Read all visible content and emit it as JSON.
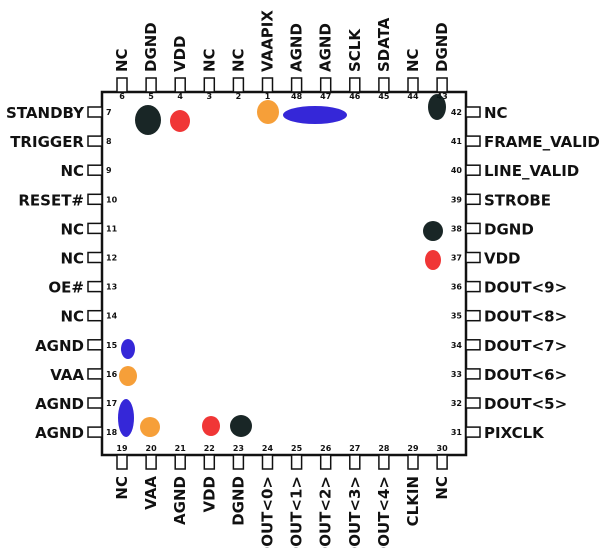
{
  "chip": {
    "top_pins": [
      {
        "num": "6",
        "label": "NC"
      },
      {
        "num": "5",
        "label": "DGND"
      },
      {
        "num": "4",
        "label": "VDD"
      },
      {
        "num": "3",
        "label": "NC"
      },
      {
        "num": "2",
        "label": "NC"
      },
      {
        "num": "1",
        "label": "VAAPIX"
      },
      {
        "num": "48",
        "label": "AGND"
      },
      {
        "num": "47",
        "label": "AGND"
      },
      {
        "num": "46",
        "label": "SCLK"
      },
      {
        "num": "45",
        "label": "SDATA"
      },
      {
        "num": "44",
        "label": "NC"
      },
      {
        "num": "43",
        "label": "DGND"
      }
    ],
    "left_pins": [
      {
        "num": "7",
        "label": "STANDBY"
      },
      {
        "num": "8",
        "label": "TRIGGER"
      },
      {
        "num": "9",
        "label": "NC"
      },
      {
        "num": "10",
        "label": "RESET#"
      },
      {
        "num": "11",
        "label": "NC"
      },
      {
        "num": "12",
        "label": "NC"
      },
      {
        "num": "13",
        "label": "OE#"
      },
      {
        "num": "14",
        "label": "NC"
      },
      {
        "num": "15",
        "label": "AGND"
      },
      {
        "num": "16",
        "label": "VAA"
      },
      {
        "num": "17",
        "label": "AGND"
      },
      {
        "num": "18",
        "label": "AGND"
      }
    ],
    "right_pins": [
      {
        "num": "42",
        "label": "NC"
      },
      {
        "num": "41",
        "label": "FRAME_VALID"
      },
      {
        "num": "40",
        "label": "LINE_VALID"
      },
      {
        "num": "39",
        "label": "STROBE"
      },
      {
        "num": "38",
        "label": "DGND"
      },
      {
        "num": "37",
        "label": "VDD"
      },
      {
        "num": "36",
        "label": "DOUT<9>"
      },
      {
        "num": "35",
        "label": "DOUT<8>"
      },
      {
        "num": "34",
        "label": "DOUT<7>"
      },
      {
        "num": "33",
        "label": "DOUT<6>"
      },
      {
        "num": "32",
        "label": "DOUT<5>"
      },
      {
        "num": "31",
        "label": "PIXCLK"
      }
    ],
    "bottom_pins": [
      {
        "num": "19",
        "label": "NC"
      },
      {
        "num": "20",
        "label": "VAA"
      },
      {
        "num": "21",
        "label": "AGND"
      },
      {
        "num": "22",
        "label": "VDD"
      },
      {
        "num": "23",
        "label": "DGND"
      },
      {
        "num": "24",
        "label": "DOUT<0>"
      },
      {
        "num": "25",
        "label": "DOUT<1>"
      },
      {
        "num": "26",
        "label": "DOUT<2>"
      },
      {
        "num": "27",
        "label": "DOUT<3>"
      },
      {
        "num": "28",
        "label": "DOUT<4>"
      },
      {
        "num": "29",
        "label": "CLKIN"
      },
      {
        "num": "30",
        "label": "NC"
      }
    ]
  },
  "colors": {
    "digital_ground": "#0d1a1a",
    "analog_ground": "#2a1bd6",
    "digital_supply": "#ef2b2b",
    "analog_supply": "#f59a2e",
    "highlight_label": "#e8501a",
    "outline": "#111111"
  }
}
